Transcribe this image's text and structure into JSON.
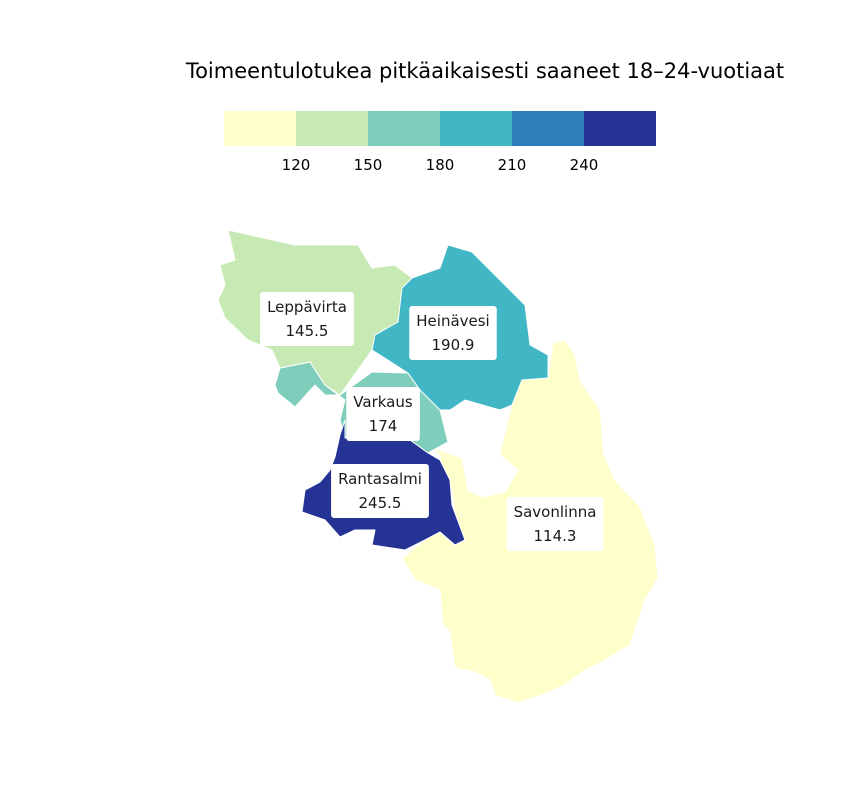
{
  "title": "Toimeentulotukea pitkäaikaisesti saaneet 18–24-vuotiaat",
  "legend": {
    "colors": [
      "#ffffcc",
      "#c7e9b4",
      "#7fcdbb",
      "#41b6c4",
      "#2c7fb8",
      "#253494"
    ],
    "breaks": [
      "120",
      "150",
      "180",
      "210",
      "240"
    ]
  },
  "regions": [
    {
      "id": "leppavirta",
      "name": "Leppävirta",
      "value": "145.5",
      "color": "#c7e9b4"
    },
    {
      "id": "heinavesi",
      "name": "Heinävesi",
      "value": "190.9",
      "color": "#41b6c4"
    },
    {
      "id": "varkaus",
      "name": "Varkaus",
      "value": "174",
      "color": "#7fcdbb"
    },
    {
      "id": "rantasalmi",
      "name": "Rantasalmi",
      "value": "245.5",
      "color": "#253494"
    },
    {
      "id": "savonlinna",
      "name": "Savonlinna",
      "value": "114.3",
      "color": "#ffffcc"
    }
  ]
}
